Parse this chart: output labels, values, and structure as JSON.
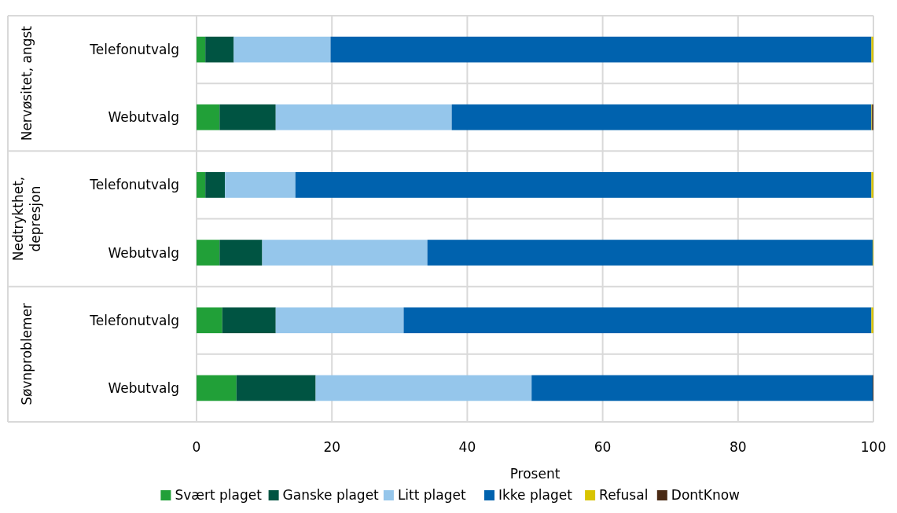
{
  "chart_data": {
    "type": "bar",
    "orientation": "horizontal",
    "stacked": true,
    "xlabel": "Prosent",
    "categories": [
      "Telefonutvalg",
      "Webutvalg",
      "Telefonutvalg",
      "Webutvalg",
      "Telefonutvalg",
      "Webutvalg"
    ],
    "annotations": [
      "Nervøsitet, angst",
      "Nedtrykthet, depresjon",
      "Søvnproblemer"
    ],
    "series": [
      {
        "name": "Svært plaget",
        "color": "#21a038",
        "values": [
          1.3,
          3.4,
          1.3,
          3.4,
          3.8,
          5.9
        ]
      },
      {
        "name": "Ganske plaget",
        "color": "#005442",
        "values": [
          4.2,
          8.3,
          2.9,
          6.3,
          7.9,
          11.7
        ]
      },
      {
        "name": "Litt plaget",
        "color": "#95c6eb",
        "values": [
          14.3,
          26.0,
          10.4,
          24.4,
          18.9,
          31.9
        ]
      },
      {
        "name": "Ikke plaget",
        "color": "#0062ae",
        "values": [
          79.9,
          62.0,
          85.1,
          65.8,
          69.1,
          50.4
        ]
      },
      {
        "name": "Refusal",
        "color": "#d8c400",
        "values": [
          0.3,
          0.1,
          0.3,
          0.1,
          0.3,
          0
        ]
      },
      {
        "name": "DontKnow",
        "color": "#4a2a14",
        "values": [
          0,
          0.2,
          0,
          0,
          0,
          0.1
        ]
      }
    ],
    "xlim": [
      0,
      100
    ],
    "xticks": [
      0,
      20,
      40,
      60,
      80,
      100
    ],
    "grid": "x",
    "legend": "bottom"
  }
}
